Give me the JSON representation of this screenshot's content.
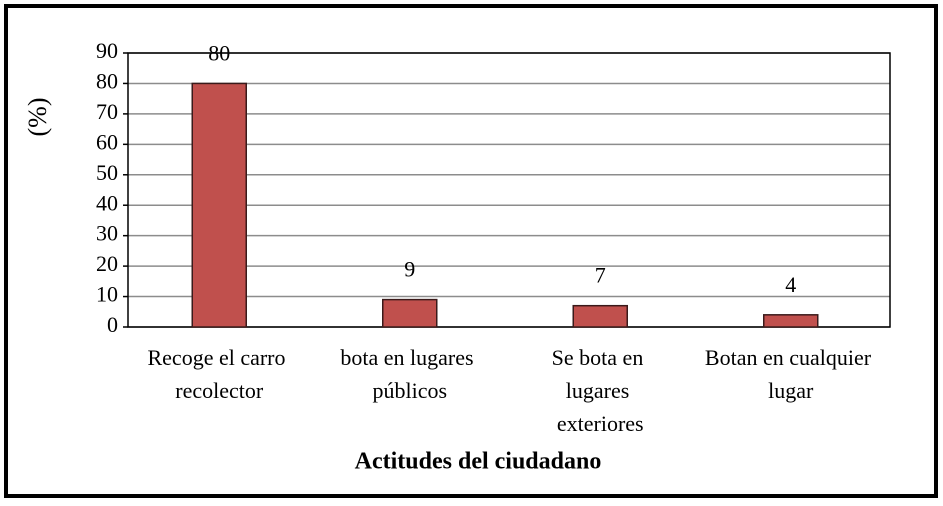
{
  "chart_data": {
    "type": "bar",
    "x_label": "Actitudes del ciudadano",
    "y_label": "(%)",
    "categories": [
      "Recoge el carro recolector",
      "bota en lugares públicos",
      "Se bota en lugares exteriores",
      "Botan en cualquier lugar"
    ],
    "values": [
      80,
      9,
      7,
      4
    ],
    "color": "#c0504d",
    "ylim": [
      0,
      90
    ],
    "yticks": [
      0,
      10,
      20,
      30,
      40,
      50,
      60,
      70,
      80,
      90
    ],
    "grid": true
  }
}
